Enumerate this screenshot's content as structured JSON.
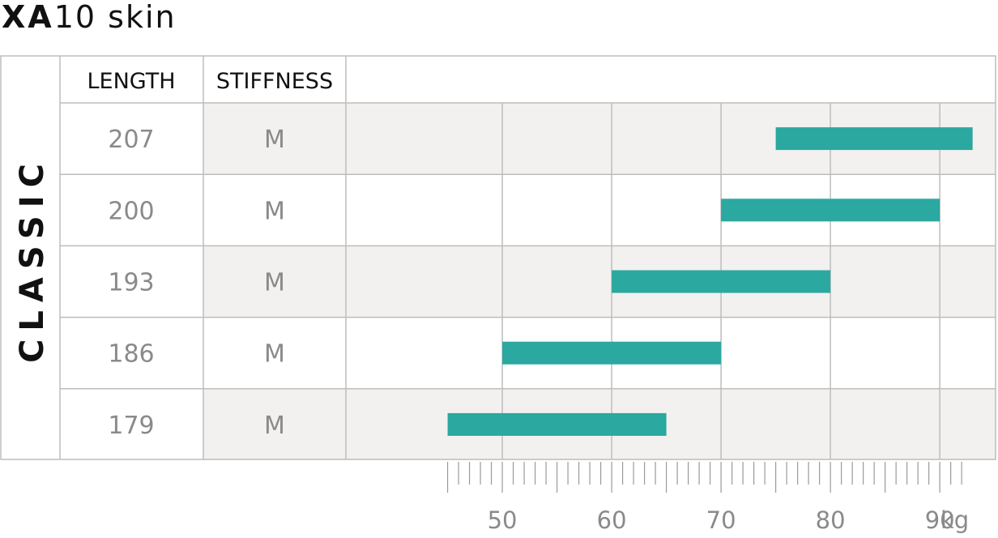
{
  "title": {
    "bold": "XA",
    "rest": "10  skin"
  },
  "side_label": "CLASSIC",
  "headers": {
    "length": "LENGTH",
    "stiffness": "STIFFNESS"
  },
  "colors": {
    "bar": "#2ba89f",
    "shade": "#f2f1ef",
    "line": "#bdbdbd",
    "text_gray": "#8a8a8a"
  },
  "chart_data": {
    "type": "bar",
    "orientation": "horizontal-range",
    "xlabel": "kg",
    "xlim": [
      35.7,
      95.1
    ],
    "xticks": [
      50,
      60,
      70,
      80,
      90
    ],
    "grid": true,
    "rows": [
      {
        "length": "207",
        "stiffness": "M",
        "min": 75,
        "max": 93
      },
      {
        "length": "200",
        "stiffness": "M",
        "min": 70,
        "max": 90
      },
      {
        "length": "193",
        "stiffness": "M",
        "min": 60,
        "max": 80
      },
      {
        "length": "186",
        "stiffness": "M",
        "min": 50,
        "max": 70
      },
      {
        "length": "179",
        "stiffness": "M",
        "min": 45,
        "max": 65
      }
    ]
  }
}
